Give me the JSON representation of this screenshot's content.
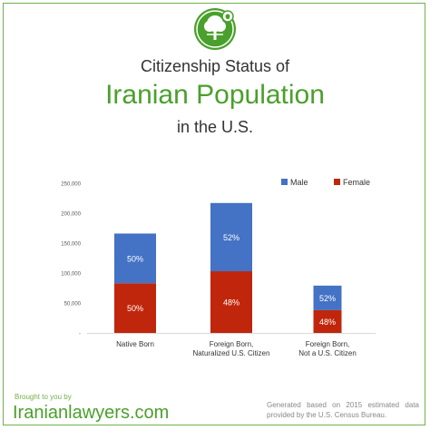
{
  "header": {
    "title_line1": "Citizenship Status of",
    "title_line2": "Iranian Population",
    "title_line3": "in the U.S."
  },
  "logo_icon": "tree-scales-icon",
  "footer": {
    "brought_by": "Brought to you by",
    "site": "Iranianlawyers.com",
    "note": "Generated based on 2015 estimated data provided by the U.S. Census Bureau."
  },
  "colors": {
    "male": "#4472c4",
    "female": "#c0260b",
    "brand": "#4aa02c"
  },
  "chart_data": {
    "type": "bar",
    "stacked": true,
    "categories": [
      [
        "Native Born"
      ],
      [
        "Foreign Born,",
        "Naturalized U.S. Citizen"
      ],
      [
        "Foreign Born,",
        "Not a U.S. Citizen"
      ]
    ],
    "series": [
      {
        "name": "Female",
        "values": [
          83000,
          103000,
          38000
        ],
        "labels": [
          "50%",
          "48%",
          "48%"
        ]
      },
      {
        "name": "Male",
        "values": [
          83000,
          114000,
          41000
        ],
        "labels": [
          "50%",
          "52%",
          "52%"
        ]
      }
    ],
    "ylim": [
      0,
      250000
    ],
    "yticks": [
      "-",
      "50,000",
      "100,000",
      "150,000",
      "200,000",
      "250,000"
    ],
    "legend": [
      "Male",
      "Female"
    ],
    "legend_position": "top-right",
    "grid": false
  }
}
